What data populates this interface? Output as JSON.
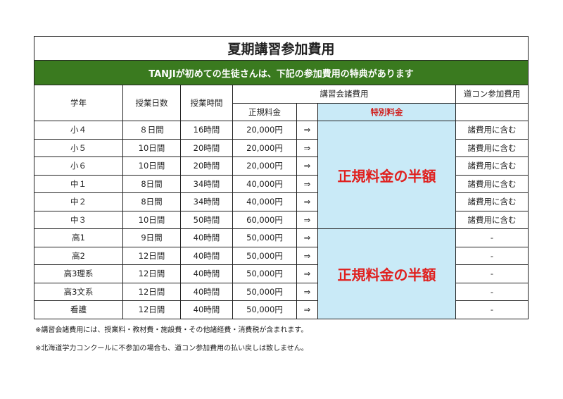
{
  "title": "夏期講習参加費用",
  "banner": "TANJIが初めての生徒さんは、下記の参加費用の特典があります",
  "headers": {
    "grade": "学年",
    "days": "授業日数",
    "hours": "授業時間",
    "fees": "講習会諸費用",
    "regular": "正規料金",
    "special": "特別料金",
    "docon": "道コン参加費用"
  },
  "arrow": "⇒",
  "special_text": "正規料金の半額",
  "rows": [
    {
      "grade": "小４",
      "days": "８日間",
      "hours": "16時間",
      "price": "20,000円",
      "docon": "諸費用に含む"
    },
    {
      "grade": "小５",
      "days": "10日間",
      "hours": "20時間",
      "price": "20,000円",
      "docon": "諸費用に含む"
    },
    {
      "grade": "小６",
      "days": "10日間",
      "hours": "20時間",
      "price": "20,000円",
      "docon": "諸費用に含む"
    },
    {
      "grade": "中１",
      "days": "8日間",
      "hours": "34時間",
      "price": "40,000円",
      "docon": "諸費用に含む"
    },
    {
      "grade": "中２",
      "days": "8日間",
      "hours": "34時間",
      "price": "40,000円",
      "docon": "諸費用に含む"
    },
    {
      "grade": "中３",
      "days": "10日間",
      "hours": "50時間",
      "price": "60,000円",
      "docon": "諸費用に含む"
    },
    {
      "grade": "高1",
      "days": "9日間",
      "hours": "40時間",
      "price": "50,000円",
      "docon": "-"
    },
    {
      "grade": "高2",
      "days": "12日間",
      "hours": "40時間",
      "price": "50,000円",
      "docon": "-"
    },
    {
      "grade": "高3理系",
      "days": "12日間",
      "hours": "40時間",
      "price": "50,000円",
      "docon": "-"
    },
    {
      "grade": "高3文系",
      "days": "12日間",
      "hours": "40時間",
      "price": "50,000円",
      "docon": "-"
    },
    {
      "grade": "看護",
      "days": "12日間",
      "hours": "40時間",
      "price": "50,000円",
      "docon": "-"
    }
  ],
  "notes": [
    "※講習会諸費用には、授業料・教材費・施設費・その他諸経費・消費税が含まれます。",
    "※北海道学力コンクールに不参加の場合も、道コン参加費用の払い戻しは致しません。"
  ]
}
